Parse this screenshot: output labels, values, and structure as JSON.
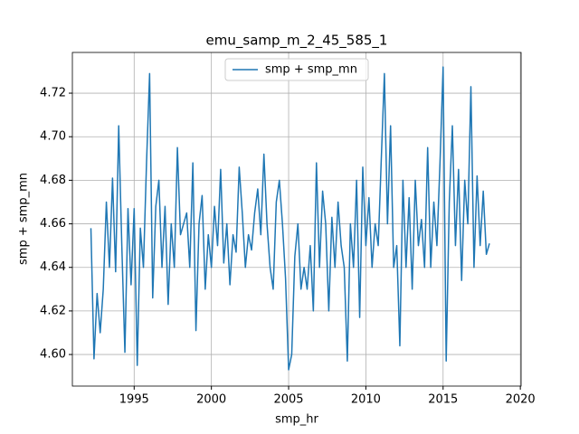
{
  "chart_data": {
    "type": "line",
    "title": "emu_samp_m_2_45_585_1",
    "xlabel": "smp_hr",
    "ylabel": "smp + smp_mn",
    "x": [
      1992.2,
      1992.4,
      1992.6,
      1992.8,
      1993.0,
      1993.2,
      1993.4,
      1993.6,
      1993.8,
      1994.0,
      1994.2,
      1994.4,
      1994.6,
      1994.8,
      1995.0,
      1995.2,
      1995.4,
      1995.6,
      1995.8,
      1996.0,
      1996.2,
      1996.4,
      1996.6,
      1996.8,
      1997.0,
      1997.2,
      1997.4,
      1997.6,
      1997.8,
      1998.0,
      1998.2,
      1998.4,
      1998.6,
      1998.8,
      1999.0,
      1999.2,
      1999.4,
      1999.6,
      1999.8,
      2000.0,
      2000.2,
      2000.4,
      2000.6,
      2000.8,
      2001.0,
      2001.2,
      2001.4,
      2001.6,
      2001.8,
      2002.0,
      2002.2,
      2002.4,
      2002.6,
      2002.8,
      2003.0,
      2003.2,
      2003.4,
      2003.6,
      2003.8,
      2004.0,
      2004.2,
      2004.4,
      2004.6,
      2004.8,
      2005.0,
      2005.2,
      2005.4,
      2005.6,
      2005.8,
      2006.0,
      2006.2,
      2006.4,
      2006.6,
      2006.8,
      2007.0,
      2007.2,
      2007.4,
      2007.6,
      2007.8,
      2008.0,
      2008.2,
      2008.4,
      2008.6,
      2008.8,
      2009.0,
      2009.2,
      2009.4,
      2009.6,
      2009.8,
      2010.0,
      2010.2,
      2010.4,
      2010.6,
      2010.8,
      2011.0,
      2011.2,
      2011.4,
      2011.6,
      2011.8,
      2012.0,
      2012.2,
      2012.4,
      2012.6,
      2012.8,
      2013.0,
      2013.2,
      2013.4,
      2013.6,
      2013.8,
      2014.0,
      2014.2,
      2014.4,
      2014.6,
      2014.8,
      2015.0,
      2015.2,
      2015.4,
      2015.6,
      2015.8,
      2016.0,
      2016.2,
      2016.4,
      2016.6,
      2016.8,
      2017.0,
      2017.2,
      2017.4,
      2017.6,
      2017.8,
      2018.0
    ],
    "series": [
      {
        "name": "smp + smp_mn",
        "color": "#1f77b4",
        "values": [
          4.658,
          4.598,
          4.628,
          4.61,
          4.63,
          4.67,
          4.64,
          4.681,
          4.638,
          4.705,
          4.65,
          4.601,
          4.667,
          4.632,
          4.667,
          4.595,
          4.658,
          4.64,
          4.688,
          4.729,
          4.626,
          4.668,
          4.68,
          4.64,
          4.668,
          4.623,
          4.66,
          4.64,
          4.695,
          4.655,
          4.66,
          4.665,
          4.64,
          4.688,
          4.611,
          4.66,
          4.673,
          4.63,
          4.655,
          4.64,
          4.668,
          4.65,
          4.685,
          4.642,
          4.66,
          4.632,
          4.655,
          4.647,
          4.686,
          4.665,
          4.64,
          4.655,
          4.648,
          4.665,
          4.676,
          4.655,
          4.692,
          4.66,
          4.64,
          4.63,
          4.67,
          4.68,
          4.66,
          4.635,
          4.593,
          4.6,
          4.645,
          4.66,
          4.63,
          4.64,
          4.63,
          4.65,
          4.62,
          4.688,
          4.64,
          4.675,
          4.66,
          4.62,
          4.663,
          4.64,
          4.67,
          4.65,
          4.64,
          4.597,
          4.66,
          4.64,
          4.68,
          4.617,
          4.686,
          4.65,
          4.672,
          4.64,
          4.66,
          4.65,
          4.69,
          4.729,
          4.66,
          4.705,
          4.64,
          4.65,
          4.604,
          4.68,
          4.64,
          4.672,
          4.63,
          4.68,
          4.65,
          4.662,
          4.64,
          4.695,
          4.64,
          4.67,
          4.65,
          4.688,
          4.732,
          4.597,
          4.67,
          4.705,
          4.65,
          4.685,
          4.634,
          4.68,
          4.66,
          4.723,
          4.64,
          4.682,
          4.65,
          4.675,
          4.646,
          4.651
        ]
      }
    ],
    "xlim": [
      1991.0,
      2020.05
    ],
    "xticks": [
      1995,
      2000,
      2005,
      2010,
      2015,
      2020
    ],
    "ylim": [
      4.5855,
      4.7387
    ],
    "yticks": [
      {
        "value": 4.6,
        "label": "4.60"
      },
      4.62,
      4.64,
      4.66,
      4.68,
      {
        "value": 4.7,
        "label": "4.70"
      },
      4.72
    ],
    "grid": true,
    "legend": "upper center"
  }
}
